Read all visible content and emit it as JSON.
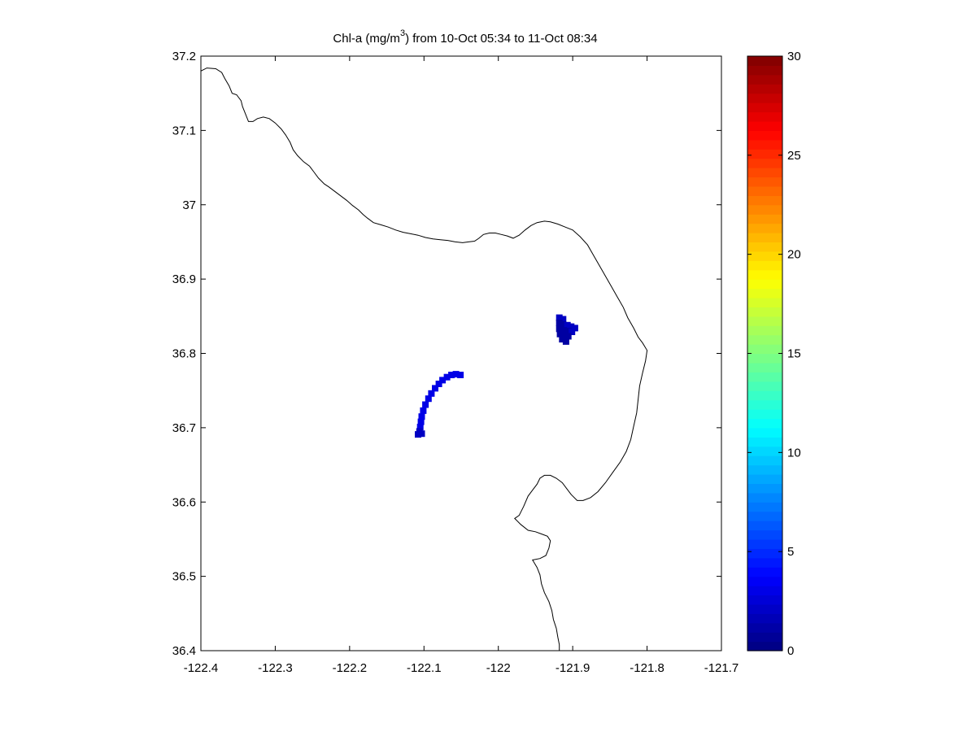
{
  "chart_data": {
    "type": "heatmap",
    "title": {
      "prefix": "Chl-a (mg/m",
      "superscript": "3",
      "suffix": ") from 10-Oct 05:34 to 11-Oct 08:34"
    },
    "xlabel": "",
    "ylabel": "",
    "xlim": [
      -122.4,
      -121.7
    ],
    "ylim": [
      36.4,
      37.2
    ],
    "xticks": [
      -122.4,
      -122.3,
      -122.2,
      -122.1,
      -122.0,
      -121.9,
      -121.8,
      -121.7
    ],
    "xtick_labels": [
      "-122.4",
      "-122.3",
      "-122.2",
      "-122.1",
      "-122",
      "-121.9",
      "-121.8",
      "-121.7"
    ],
    "yticks": [
      36.4,
      36.5,
      36.6,
      36.7,
      36.8,
      36.9,
      37.0,
      37.1,
      37.2
    ],
    "ytick_labels": [
      "36.4",
      "36.5",
      "36.6",
      "36.7",
      "36.8",
      "36.9",
      "37",
      "37.1",
      "37.2"
    ],
    "grid": false,
    "colorbar": {
      "colormap": "jet",
      "range": [
        0,
        30
      ],
      "ticks": [
        0,
        5,
        10,
        15,
        20,
        25,
        30
      ],
      "tick_labels": [
        "0",
        "5",
        "10",
        "15",
        "20",
        "25",
        "30"
      ],
      "levels": 64
    },
    "coastline": [
      [
        -122.4,
        37.18
      ],
      [
        -122.392,
        37.184
      ],
      [
        -122.38,
        37.183
      ],
      [
        -122.372,
        37.178
      ],
      [
        -122.368,
        37.17
      ],
      [
        -122.362,
        37.16
      ],
      [
        -122.358,
        37.15
      ],
      [
        -122.352,
        37.148
      ],
      [
        -122.346,
        37.14
      ],
      [
        -122.344,
        37.132
      ],
      [
        -122.34,
        37.122
      ],
      [
        -122.336,
        37.112
      ],
      [
        -122.33,
        37.112
      ],
      [
        -122.324,
        37.116
      ],
      [
        -122.316,
        37.118
      ],
      [
        -122.308,
        37.116
      ],
      [
        -122.3,
        37.11
      ],
      [
        -122.292,
        37.102
      ],
      [
        -122.286,
        37.094
      ],
      [
        -122.28,
        37.084
      ],
      [
        -122.276,
        37.074
      ],
      [
        -122.27,
        37.066
      ],
      [
        -122.262,
        37.058
      ],
      [
        -122.254,
        37.052
      ],
      [
        -122.248,
        37.044
      ],
      [
        -122.242,
        37.036
      ],
      [
        -122.234,
        37.028
      ],
      [
        -122.228,
        37.024
      ],
      [
        -122.22,
        37.018
      ],
      [
        -122.212,
        37.012
      ],
      [
        -122.204,
        37.006
      ],
      [
        -122.196,
        36.999
      ],
      [
        -122.188,
        36.993
      ],
      [
        -122.182,
        36.987
      ],
      [
        -122.176,
        36.982
      ],
      [
        -122.168,
        36.976
      ],
      [
        -122.158,
        36.973
      ],
      [
        -122.148,
        36.97
      ],
      [
        -122.138,
        36.966
      ],
      [
        -122.128,
        36.963
      ],
      [
        -122.118,
        36.961
      ],
      [
        -122.108,
        36.959
      ],
      [
        -122.098,
        36.956
      ],
      [
        -122.088,
        36.954
      ],
      [
        -122.078,
        36.953
      ],
      [
        -122.068,
        36.952
      ],
      [
        -122.058,
        36.95
      ],
      [
        -122.048,
        36.949
      ],
      [
        -122.04,
        36.95
      ],
      [
        -122.032,
        36.951
      ],
      [
        -122.026,
        36.955
      ],
      [
        -122.02,
        36.96
      ],
      [
        -122.012,
        36.962
      ],
      [
        -122.004,
        36.962
      ],
      [
        -121.996,
        36.96
      ],
      [
        -121.988,
        36.958
      ],
      [
        -121.98,
        36.955
      ],
      [
        -121.972,
        36.959
      ],
      [
        -121.964,
        36.966
      ],
      [
        -121.956,
        36.972
      ],
      [
        -121.948,
        36.976
      ],
      [
        -121.938,
        36.978
      ],
      [
        -121.93,
        36.977
      ],
      [
        -121.92,
        36.974
      ],
      [
        -121.91,
        36.97
      ],
      [
        -121.9,
        36.966
      ],
      [
        -121.89,
        36.957
      ],
      [
        -121.88,
        36.946
      ],
      [
        -121.872,
        36.932
      ],
      [
        -121.864,
        36.918
      ],
      [
        -121.856,
        36.904
      ],
      [
        -121.848,
        36.89
      ],
      [
        -121.84,
        36.876
      ],
      [
        -121.832,
        36.862
      ],
      [
        -121.826,
        36.848
      ],
      [
        -121.818,
        36.834
      ],
      [
        -121.812,
        36.822
      ],
      [
        -121.806,
        36.814
      ],
      [
        -121.8,
        36.804
      ],
      [
        -121.802,
        36.79
      ],
      [
        -121.806,
        36.774
      ],
      [
        -121.81,
        36.756
      ],
      [
        -121.812,
        36.738
      ],
      [
        -121.814,
        36.72
      ],
      [
        -121.818,
        36.702
      ],
      [
        -121.822,
        36.684
      ],
      [
        -121.828,
        36.668
      ],
      [
        -121.836,
        36.654
      ],
      [
        -121.846,
        36.64
      ],
      [
        -121.856,
        36.626
      ],
      [
        -121.866,
        36.614
      ],
      [
        -121.876,
        36.606
      ],
      [
        -121.886,
        36.602
      ],
      [
        -121.894,
        36.602
      ],
      [
        -121.902,
        36.61
      ],
      [
        -121.908,
        36.618
      ],
      [
        -121.914,
        36.626
      ],
      [
        -121.922,
        36.632
      ],
      [
        -121.93,
        36.636
      ],
      [
        -121.938,
        36.636
      ],
      [
        -121.944,
        36.632
      ],
      [
        -121.948,
        36.624
      ],
      [
        -121.954,
        36.616
      ],
      [
        -121.96,
        36.608
      ],
      [
        -121.966,
        36.594
      ],
      [
        -121.972,
        36.582
      ],
      [
        -121.978,
        36.578
      ],
      [
        -121.97,
        36.57
      ],
      [
        -121.96,
        36.562
      ],
      [
        -121.95,
        36.56
      ],
      [
        -121.942,
        36.557
      ],
      [
        -121.934,
        36.554
      ],
      [
        -121.93,
        36.548
      ],
      [
        -121.932,
        36.538
      ],
      [
        -121.936,
        36.528
      ],
      [
        -121.944,
        36.524
      ],
      [
        -121.954,
        36.522
      ],
      [
        -121.948,
        36.512
      ],
      [
        -121.944,
        36.502
      ],
      [
        -121.942,
        36.49
      ],
      [
        -121.938,
        36.478
      ],
      [
        -121.932,
        36.466
      ],
      [
        -121.928,
        36.454
      ],
      [
        -121.926,
        36.442
      ],
      [
        -121.922,
        36.43
      ],
      [
        -121.92,
        36.418
      ],
      [
        -121.918,
        36.408
      ],
      [
        -121.918,
        36.4
      ]
    ],
    "cells": [
      {
        "lon": -121.918,
        "lat": 36.848,
        "value": 2
      },
      {
        "lon": -121.913,
        "lat": 36.846,
        "value": 2
      },
      {
        "lon": -121.918,
        "lat": 36.841,
        "value": 1
      },
      {
        "lon": -121.913,
        "lat": 36.839,
        "value": 1
      },
      {
        "lon": -121.907,
        "lat": 36.838,
        "value": 2
      },
      {
        "lon": -121.902,
        "lat": 36.836,
        "value": 2
      },
      {
        "lon": -121.897,
        "lat": 36.834,
        "value": 2
      },
      {
        "lon": -121.918,
        "lat": 36.833,
        "value": 1
      },
      {
        "lon": -121.912,
        "lat": 36.831,
        "value": 1
      },
      {
        "lon": -121.906,
        "lat": 36.83,
        "value": 1
      },
      {
        "lon": -121.901,
        "lat": 36.829,
        "value": 2
      },
      {
        "lon": -121.917,
        "lat": 36.826,
        "value": 1
      },
      {
        "lon": -121.911,
        "lat": 36.824,
        "value": 1
      },
      {
        "lon": -121.906,
        "lat": 36.823,
        "value": 1
      },
      {
        "lon": -121.914,
        "lat": 36.819,
        "value": 1
      },
      {
        "lon": -121.909,
        "lat": 36.816,
        "value": 1
      },
      {
        "lon": -122.051,
        "lat": 36.771,
        "value": 3
      },
      {
        "lon": -122.057,
        "lat": 36.772,
        "value": 3
      },
      {
        "lon": -122.063,
        "lat": 36.771,
        "value": 3
      },
      {
        "lon": -122.069,
        "lat": 36.768,
        "value": 3
      },
      {
        "lon": -122.075,
        "lat": 36.764,
        "value": 3
      },
      {
        "lon": -122.08,
        "lat": 36.759,
        "value": 3
      },
      {
        "lon": -122.085,
        "lat": 36.753,
        "value": 3
      },
      {
        "lon": -122.09,
        "lat": 36.746,
        "value": 3
      },
      {
        "lon": -122.094,
        "lat": 36.739,
        "value": 3
      },
      {
        "lon": -122.098,
        "lat": 36.731,
        "value": 3
      },
      {
        "lon": -122.101,
        "lat": 36.723,
        "value": 3
      },
      {
        "lon": -122.103,
        "lat": 36.715,
        "value": 3
      },
      {
        "lon": -122.104,
        "lat": 36.708,
        "value": 3
      },
      {
        "lon": -122.105,
        "lat": 36.701,
        "value": 3
      },
      {
        "lon": -122.106,
        "lat": 36.695,
        "value": 2
      },
      {
        "lon": -122.103,
        "lat": 36.692,
        "value": 2
      },
      {
        "lon": -122.108,
        "lat": 36.691,
        "value": 2
      }
    ]
  }
}
